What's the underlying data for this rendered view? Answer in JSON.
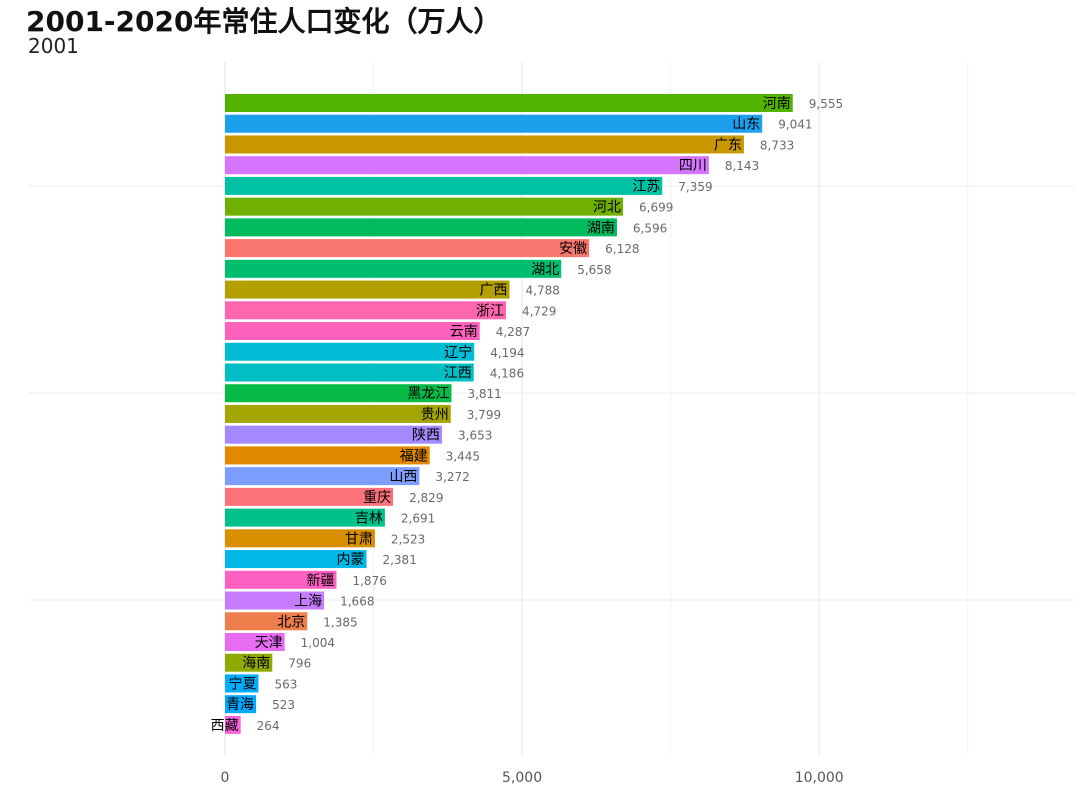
{
  "chart_data": {
    "type": "bar",
    "orientation": "horizontal",
    "title": "2001-2020年常住人口变化（万人）",
    "subtitle": "2001",
    "xlabel": "",
    "ylabel": "",
    "xlim": [
      0,
      14000
    ],
    "xticks": [
      0,
      5000,
      10000
    ],
    "xtick_labels": [
      "0",
      "5,000",
      "10,000"
    ],
    "grid": true,
    "legend": "none",
    "categories": [
      "河南",
      "山东",
      "广东",
      "四川",
      "江苏",
      "河北",
      "湖南",
      "安徽",
      "湖北",
      "广西",
      "浙江",
      "云南",
      "辽宁",
      "江西",
      "黑龙江",
      "贵州",
      "陕西",
      "福建",
      "山西",
      "重庆",
      "吉林",
      "甘肃",
      "内蒙",
      "新疆",
      "上海",
      "北京",
      "天津",
      "海南",
      "宁夏",
      "青海",
      "西藏"
    ],
    "values": [
      9555,
      9041,
      8733,
      8143,
      7359,
      6699,
      6596,
      6128,
      5658,
      4788,
      4729,
      4287,
      4194,
      4186,
      3811,
      3799,
      3653,
      3445,
      3272,
      2829,
      2691,
      2523,
      2381,
      1876,
      1668,
      1385,
      1004,
      796,
      563,
      523,
      264
    ],
    "value_labels": [
      "9,555",
      "9,041",
      "8,733",
      "8,143",
      "7,359",
      "6,699",
      "6,596",
      "6,128",
      "5,658",
      "4,788",
      "4,729",
      "4,287",
      "4,194",
      "4,186",
      "3,811",
      "3,799",
      "3,653",
      "3,445",
      "3,272",
      "2,829",
      "2,691",
      "2,523",
      "2,381",
      "1,876",
      "1,668",
      "1,385",
      "1,004",
      "796",
      "563",
      "523",
      "264"
    ],
    "colors": [
      "#53B400",
      "#1CA0EE",
      "#C99800",
      "#D575FE",
      "#00C1A3",
      "#6FB000",
      "#00BA5E",
      "#F8766D",
      "#00BE6D",
      "#B3A000",
      "#FF66B0",
      "#FF62BC",
      "#00BCD4",
      "#00BFC4",
      "#06BA46",
      "#A3A500",
      "#A58AFF",
      "#E38900",
      "#7C9EFF",
      "#FB727A",
      "#00C08B",
      "#D89000",
      "#00B8E7",
      "#FF61C3",
      "#C77CFF",
      "#EE7E4C",
      "#E76BF3",
      "#8FAA00",
      "#00ADFA",
      "#00A9FF",
      "#FA62DB"
    ]
  }
}
